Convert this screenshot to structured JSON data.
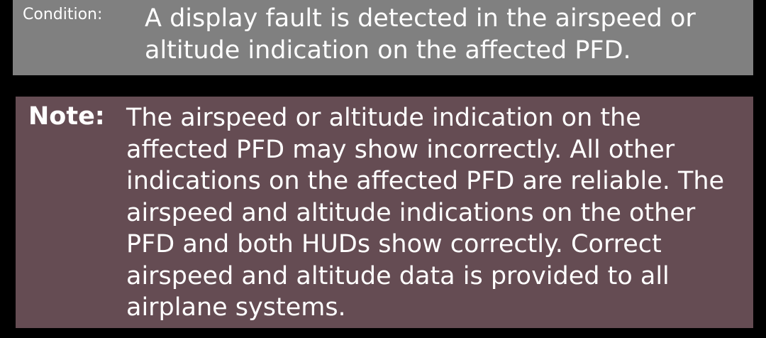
{
  "condition": {
    "label": "Condition:",
    "text": "A display fault is detected in the airspeed or altitude indication on the affected PFD."
  },
  "note": {
    "label": "Note:",
    "text": "The airspeed or altitude indication on the affected PFD may show incorrectly. All other indications on the affected PFD are reliable. The airspeed and altitude indications on the other PFD and both HUDs show correctly. Correct airspeed and altitude data is provided to all airplane systems."
  },
  "colors": {
    "background": "#000000",
    "condition_box": "#808080",
    "note_box": "#654c53",
    "text": "#ffffff"
  }
}
